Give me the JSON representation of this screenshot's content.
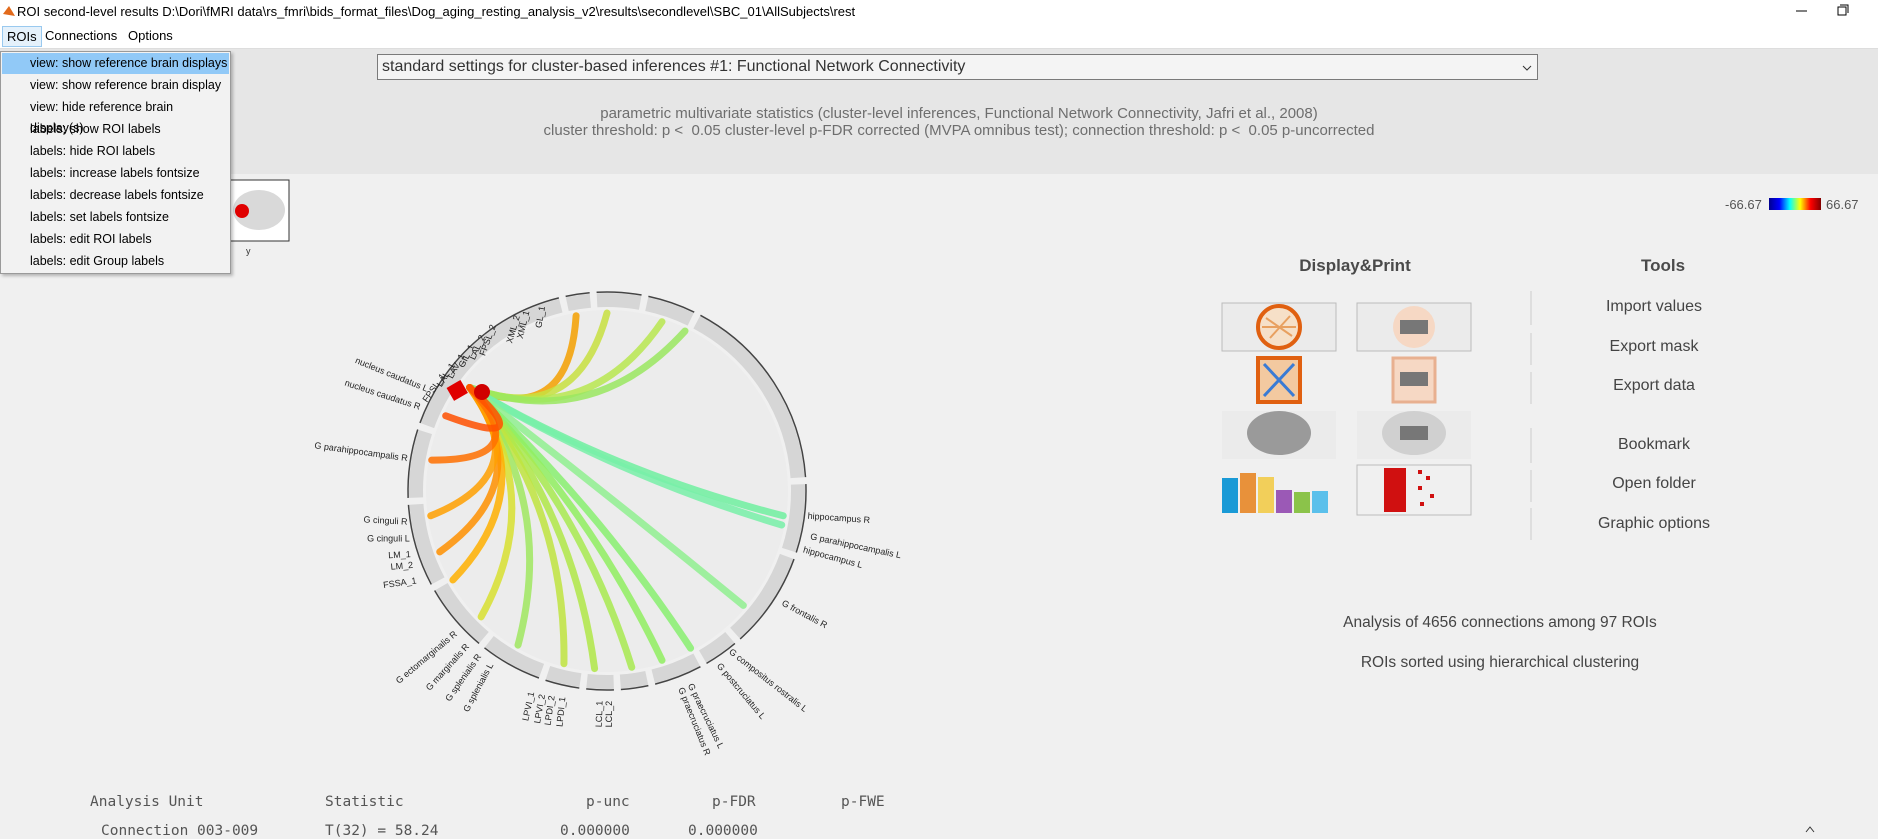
{
  "window": {
    "title": "ROI second-level results D:\\Dori\\fMRI data\\rs_fmri\\bids_format_files\\Dog_aging_resting_analysis_v2\\results\\secondlevel\\SBC_01\\AllSubjects\\rest"
  },
  "menubar": [
    "ROIs",
    "Connections",
    "Options"
  ],
  "roi_menu": [
    "view: show reference brain displays",
    "view: show reference brain display",
    "view: hide reference brain display(s)",
    "labels: show ROI labels",
    "labels: hide ROI labels",
    "labels: increase labels fontsize",
    "labels: decrease labels fontsize",
    "labels: set labels fontsize",
    "labels: edit ROI labels",
    "labels: edit Group labels"
  ],
  "settings_select": "standard settings for cluster-based inferences #1: Functional Network Connectivity",
  "stats": {
    "line1": "parametric multivariate statistics (cluster-level inferences, Functional Network Connectivity, Jafri et al., 2008)",
    "line2": "cluster threshold: p <  0.05 cluster-level p-FDR corrected (MVPA omnibus test); connection threshold: p <  0.05 p-uncorrected"
  },
  "colorbar": {
    "min": "-66.67",
    "max": "66.67"
  },
  "thumbnail_label": "y",
  "chord": {
    "roi_labels": [
      "FPSL_1",
      "LAL_1",
      "LAV_1",
      "GIL_1",
      "LAL_2",
      "FPSL_2",
      "XML_2",
      "XML_1",
      "GL_1",
      "nucleus caudatus L",
      "nucleus caudatus R",
      "G parahippocampalis R",
      "G cinguli R",
      "G cinguli L",
      "LM_1",
      "LM_2",
      "FSSA_1",
      "G ectomarginalis R",
      "G marginalis R",
      "G splenialis R",
      "G splenialis L",
      "LPVI_1",
      "LPVI_2",
      "LPDI_2",
      "LPDI_1",
      "LCL_1",
      "LCL_2",
      "G praecruciatus R",
      "G praecruciatus L",
      "G postcruciatus L",
      "G compositus rostralis L",
      "G frontalis R",
      "hippocampus R",
      "G parahippocampalis L",
      "hippocampus L"
    ]
  },
  "display_print": {
    "title": "Display&Print"
  },
  "tools": {
    "title": "Tools",
    "buttons": [
      "Import values",
      "Export mask",
      "Export data",
      "Bookmark",
      "Open folder",
      "Graphic options"
    ]
  },
  "summary": [
    "Analysis of 4656 connections among 97 ROIs",
    "ROIs sorted using hierarchical clustering"
  ],
  "results_table": {
    "header": [
      "Analysis Unit",
      "Statistic",
      "p-unc",
      "p-FDR",
      "p-FWE"
    ],
    "rows": [
      [
        "Connection 003-009",
        "T(32) = 58.24",
        "0.000000",
        "0.000000"
      ]
    ]
  }
}
